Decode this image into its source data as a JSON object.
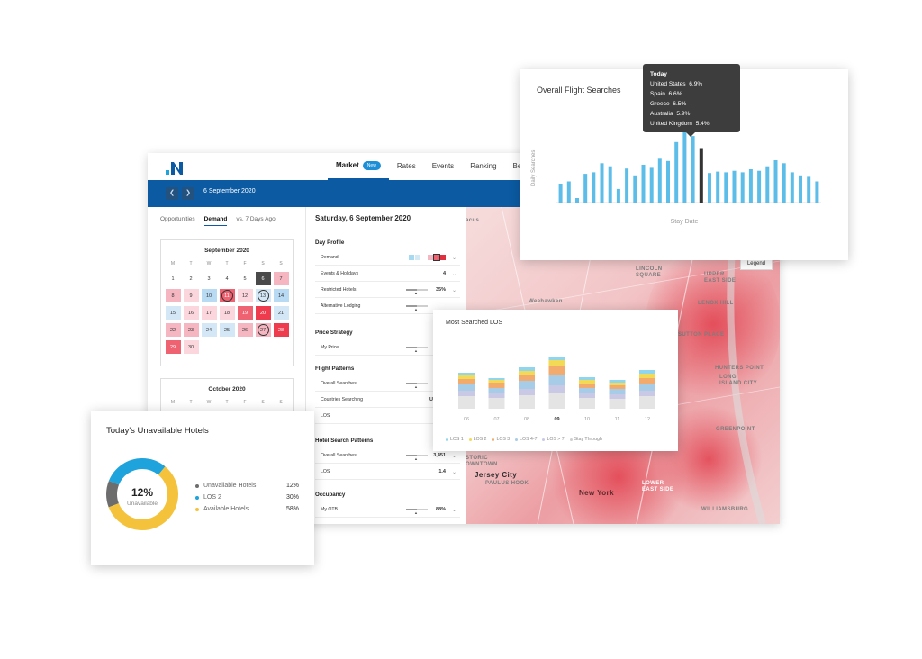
{
  "nav": {
    "items": [
      {
        "label": "Market",
        "badge": "New",
        "active": true
      },
      {
        "label": "Rates"
      },
      {
        "label": "Events"
      },
      {
        "label": "Ranking"
      },
      {
        "label": "Bench"
      }
    ]
  },
  "toolbar": {
    "date": "6 September 2020",
    "prev_icon": "chevron-left-icon",
    "next_icon": "chevron-right-icon"
  },
  "left": {
    "tabs": [
      "Opportunities",
      "Demand",
      "vs. 7 Days Ago"
    ],
    "active_tab": "Demand",
    "dow": [
      "M",
      "T",
      "W",
      "T",
      "F",
      "S",
      "S"
    ],
    "calendar1": {
      "title": "September 2020",
      "days": [
        "1",
        "2",
        "3",
        "4",
        "5",
        "6",
        "7",
        "8",
        "9",
        "10",
        "11",
        "12",
        "13",
        "14",
        "15",
        "16",
        "17",
        "18",
        "19",
        "20",
        "21",
        "22",
        "23",
        "24",
        "25",
        "26",
        "27",
        "28",
        "29",
        "30"
      ]
    },
    "calendar2": {
      "title": "October 2020"
    }
  },
  "mid": {
    "date": "Saturday, 6 September 2020",
    "day_profile": {
      "heading": "Day Profile",
      "demand": "Demand",
      "events": {
        "label": "Events & Holidays",
        "value": "4"
      },
      "restricted": {
        "label": "Restricted Hotels",
        "value": "35%"
      },
      "alt": {
        "label": "Alternative Lodging"
      }
    },
    "price_strategy": {
      "heading": "Price Strategy",
      "my_price": "My Price"
    },
    "flight_patterns": {
      "heading": "Flight Patterns",
      "overall": "Overall Searches",
      "countries": {
        "label": "Countries Searching",
        "value": "US, ES"
      },
      "los": "LOS"
    },
    "hotel_patterns": {
      "heading": "Hotel Search Patterns",
      "overall": {
        "label": "Overall Searches",
        "value": "3,451"
      },
      "los": {
        "label": "LOS",
        "value": "1.4"
      }
    },
    "occupancy": {
      "heading": "Occupancy",
      "my_otb": {
        "label": "My OTB",
        "value": "88%"
      }
    }
  },
  "map": {
    "legend_button": "Legend",
    "labels": {
      "lincoln": "LINCOLN\nSQUARE",
      "ues": "UPPER\nEAST SIDE",
      "weehawken": "Weehawken",
      "lenox": "LENOX HILL",
      "sutton": "SUTTON PLACE",
      "hunters": "HUNTERS POINT",
      "lic": "LONG\nISLAND CITY",
      "greenpoint": "GREENPOINT",
      "historic": "STORIC\nOWNTOWN",
      "jersey": "Jersey City",
      "paulus": "PAULUS HOOK",
      "newyork": "New York",
      "les": "LOWER\nEAST SIDE",
      "williamsburg": "WILLIAMSBURG",
      "acus": "acus"
    }
  },
  "flight_card": {
    "title": "Overall Flight Searches",
    "ylabel": "Daily Searches",
    "xlabel": "Stay Date",
    "tooltip": {
      "title": "Today",
      "rows": [
        {
          "country": "United States",
          "value": "6.9%"
        },
        {
          "country": "Spain",
          "value": "6.6%"
        },
        {
          "country": "Greece",
          "value": "6.5%"
        },
        {
          "country": "Australia",
          "value": "5.9%"
        },
        {
          "country": "United Kingdom",
          "value": "5.4%"
        }
      ]
    }
  },
  "los_card": {
    "title": "Most Searched LOS",
    "legend": [
      "LOS 1",
      "LOS 2",
      "LOS 3",
      "LOS 4-7",
      "LOS > 7",
      "Stay Through"
    ]
  },
  "unavailable_card": {
    "title": "Today's Unavailable Hotels",
    "center_value": "12%",
    "center_label": "Unavailable",
    "legend": [
      {
        "label": "Unavailable Hotels",
        "value": "12%"
      },
      {
        "label": "LOS 2",
        "value": "30%"
      },
      {
        "label": "Available Hotels",
        "value": "58%"
      }
    ]
  },
  "colors": {
    "brand": "#0b5aa2",
    "bar": "#5bbde8",
    "highlight": "#333333",
    "donut_unavailable": "#6d6d6d",
    "donut_los2": "#1fa3dc",
    "donut_available": "#f5c33b"
  },
  "chart_data": [
    {
      "type": "bar",
      "title": "Overall Flight Searches",
      "xlabel": "Stay Date",
      "ylabel": "Daily Searches",
      "values": [
        25,
        28,
        6,
        38,
        40,
        52,
        48,
        18,
        45,
        36,
        50,
        46,
        58,
        55,
        80,
        95,
        88,
        72,
        39,
        41,
        40,
        42,
        40,
        44,
        42,
        48,
        56,
        52,
        40,
        36,
        34,
        28
      ],
      "highlight_index": 17,
      "tooltip_title": "Today",
      "tooltip_rows": [
        "United States 6.9%",
        "Spain 6.6%",
        "Greece 6.5%",
        "Australia 5.9%",
        "United Kingdom 5.4%"
      ]
    },
    {
      "type": "bar",
      "title": "Most Searched LOS",
      "categories": [
        "06",
        "07",
        "08",
        "09",
        "10",
        "11",
        "12"
      ],
      "series": [
        {
          "name": "Stay Through",
          "values": [
            14,
            12,
            15,
            17,
            12,
            11,
            14
          ]
        },
        {
          "name": "LOS > 7",
          "values": [
            6,
            5,
            7,
            9,
            5,
            5,
            6
          ]
        },
        {
          "name": "LOS 4-7",
          "values": [
            8,
            6,
            9,
            12,
            6,
            6,
            8
          ]
        },
        {
          "name": "LOS 3",
          "values": [
            5,
            6,
            6,
            9,
            5,
            4,
            6
          ]
        },
        {
          "name": "LOS 2",
          "values": [
            4,
            3,
            5,
            7,
            4,
            3,
            5
          ]
        },
        {
          "name": "LOS 1",
          "values": [
            3,
            2,
            4,
            4,
            3,
            3,
            4
          ]
        }
      ],
      "series_colors": [
        "#e4e4e4",
        "#c9c9e6",
        "#a6cce8",
        "#f2ab6d",
        "#f3da56",
        "#8fd5ee"
      ]
    },
    {
      "type": "pie",
      "title": "Today's Unavailable Hotels",
      "categories": [
        "Unavailable Hotels",
        "LOS 2",
        "Available Hotels"
      ],
      "values": [
        12,
        30,
        58
      ]
    }
  ]
}
